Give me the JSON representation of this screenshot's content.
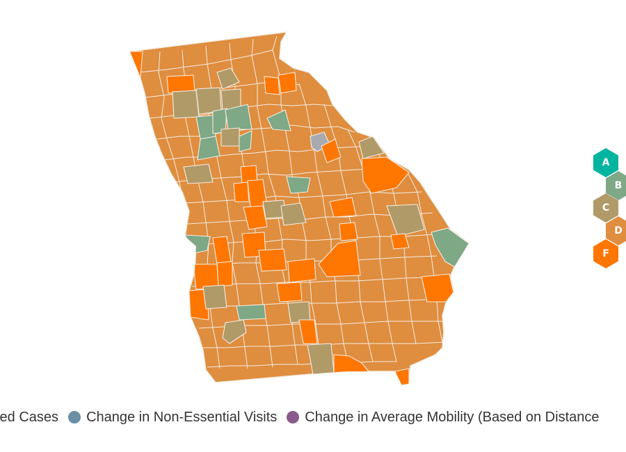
{
  "map": {
    "region": "Georgia counties",
    "colors": {
      "A": "#00b4a0",
      "B": "#7ea886",
      "C": "#b09a68",
      "D": "#df8d3e",
      "F": "#ff7600",
      "no_data": "#a9a9b0",
      "border": "#f4eee6"
    }
  },
  "grade_legend": [
    {
      "letter": "A",
      "color": "#00b4a0"
    },
    {
      "letter": "B",
      "color": "#7ea886"
    },
    {
      "letter": "C",
      "color": "#b09a68"
    },
    {
      "letter": "D",
      "color": "#df8d3e"
    },
    {
      "letter": "F",
      "color": "#ff7600"
    }
  ],
  "metric_legend": [
    {
      "label": "ted Cases",
      "color": "",
      "icon": "circle-icon"
    },
    {
      "label": "Change in Non-Essential Visits",
      "color": "#6a8fa6",
      "icon": "circle-icon"
    },
    {
      "label": "Change in Average Mobility (Based on Distance",
      "color": "#8a5a8c",
      "icon": "circle-icon"
    }
  ]
}
